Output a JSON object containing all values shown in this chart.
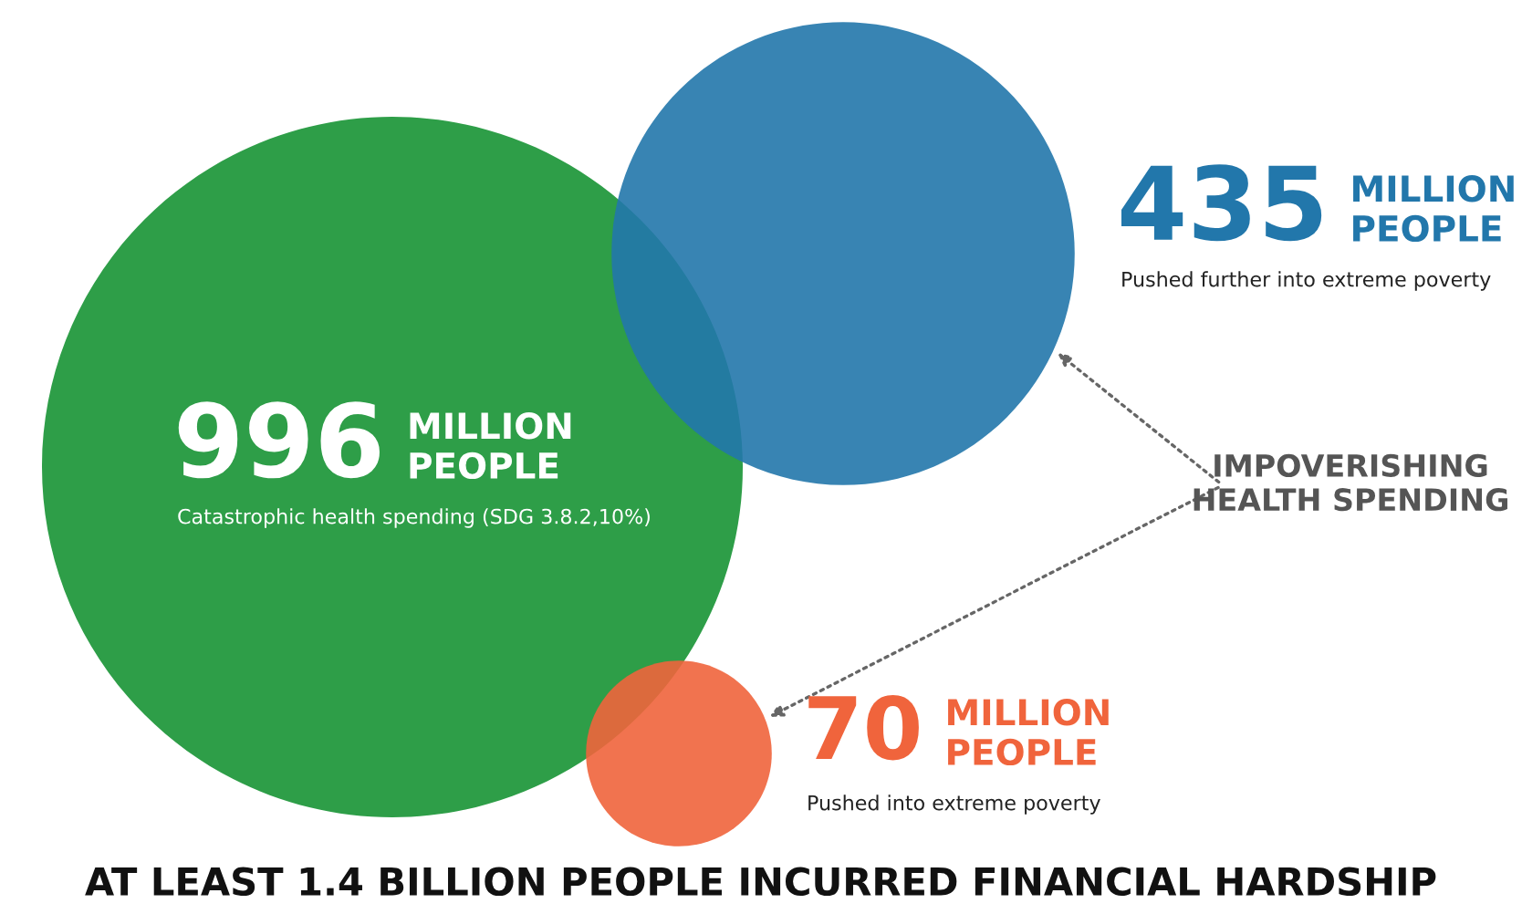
{
  "chart_data": {
    "type": "other",
    "title": "AT LEAST 1.4 BILLION PEOPLE INCURRED FINANCIAL HARDSHIP",
    "categories": [
      "Catastrophic health spending (SDG 3.8.2,10%)",
      "Pushed further into extreme poverty",
      "Pushed into extreme poverty"
    ],
    "values": [
      996,
      435,
      70
    ],
    "value_labels": [
      "996",
      "435",
      "70"
    ],
    "colors": [
      "#2e9e48",
      "#2277ab",
      "#f0643c"
    ],
    "annotations": [
      "MILLION\nPEOPLE",
      "MILLION\nPEOPLE",
      "MILLION\nPEOPLE",
      "IMPOVERISHING\nHEALTH SPENDING"
    ]
  }
}
